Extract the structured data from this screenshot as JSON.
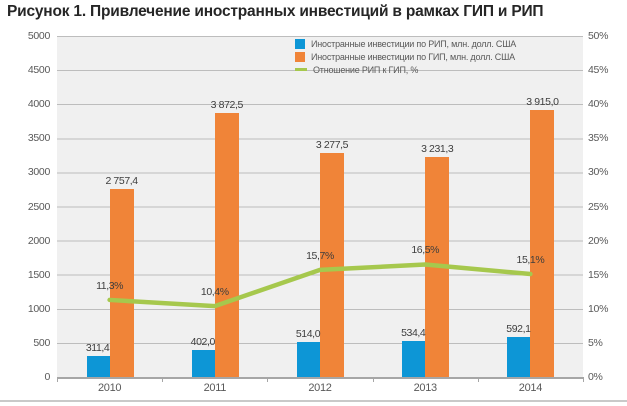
{
  "title": "Рисунок 1. Привлечение иностранных инвестиций в рамках ГИП и РИП",
  "colors": {
    "rip_blue": "#0D96D6",
    "gip_orange": "#F08438",
    "ratio_green": "#A6C84D",
    "plot_bg": "#F0F0F0",
    "grid": "#BDBDBD",
    "axis_line": "#A6A6A6",
    "axis_text": "#595959",
    "label_text": "#3D3D3D",
    "title_text": "#262626",
    "divider": "#C9C9C9"
  },
  "legend": {
    "items": [
      {
        "label": "Иностранные инвестиции по РИП, млн. долл. США"
      },
      {
        "label": "Иностранные инвестиции по ГИП, млн. долл. США"
      },
      {
        "label": "Отношение РИП к ГИП, %"
      }
    ]
  },
  "axes": {
    "left": {
      "ticks": [
        "5000",
        "4500",
        "4000",
        "3500",
        "3000",
        "2500",
        "2000",
        "1500",
        "1000",
        "500",
        "0"
      ]
    },
    "right": {
      "ticks": [
        "50%",
        "45%",
        "40%",
        "35%",
        "30%",
        "25%",
        "20%",
        "15%",
        "10%",
        "5%",
        "0%"
      ]
    },
    "x": {
      "categories": [
        "2010",
        "2011",
        "2012",
        "2013",
        "2014"
      ]
    }
  },
  "chart_data": {
    "type": "bar+line",
    "title": "Рисунок 1. Привлечение иностранных инвестиций в рамках ГИП и РИП",
    "categories": [
      "2010",
      "2011",
      "2012",
      "2013",
      "2014"
    ],
    "series": [
      {
        "name": "Иностранные инвестиции по РИП, млн. долл. США",
        "type": "bar",
        "axis": "left",
        "color": "#0D96D6",
        "values": [
          311.4,
          402.0,
          514.0,
          534.4,
          592.1
        ],
        "labels": [
          "311,4",
          "402,0",
          "514,0",
          "534,4",
          "592,1"
        ]
      },
      {
        "name": "Иностранные инвестиции по ГИП, млн. долл. США",
        "type": "bar",
        "axis": "left",
        "color": "#F08438",
        "values": [
          2757.4,
          3872.5,
          3277.5,
          3231.3,
          3915.0
        ],
        "labels": [
          "2 757,4",
          "3 872,5",
          "3 277,5",
          "3 231,3",
          "3 915,0"
        ]
      },
      {
        "name": "Отношение РИП к ГИП, %",
        "type": "line",
        "axis": "right",
        "color": "#A6C84D",
        "values": [
          11.3,
          10.4,
          15.7,
          16.5,
          15.1
        ],
        "labels": [
          "11,3%",
          "10,4%",
          "15,7%",
          "16,5%",
          "15,1%"
        ]
      }
    ],
    "left_axis": {
      "min": 0,
      "max": 5000,
      "step": 500
    },
    "right_axis": {
      "min": 0,
      "max": 50,
      "step": 5,
      "format": "percent"
    },
    "grid": true,
    "legend_position": "top-center-inside"
  }
}
